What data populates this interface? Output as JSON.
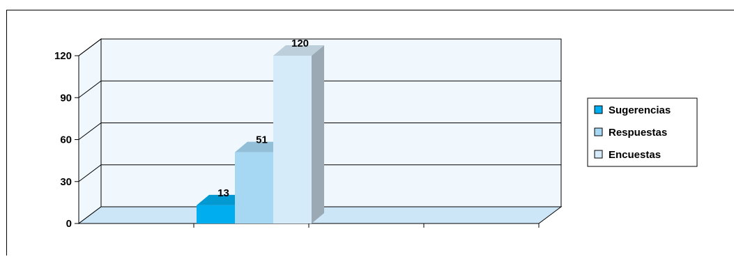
{
  "chart_data": {
    "type": "bar",
    "categories": [
      ""
    ],
    "series": [
      {
        "name": "Sugerencias",
        "values": [
          13
        ],
        "color": "#00AEEF"
      },
      {
        "name": "Respuestas",
        "values": [
          51
        ],
        "color": "#A6D8F4"
      },
      {
        "name": "Encuestas",
        "values": [
          120
        ],
        "color": "#D6EBF9"
      }
    ],
    "data_labels": [
      "13",
      "51",
      "120"
    ],
    "title": "",
    "xlabel": "",
    "ylabel": "",
    "ylim": [
      0,
      120
    ],
    "yticks": [
      0,
      30,
      60,
      90,
      120
    ],
    "ytick_labels": [
      "0",
      "30",
      "60",
      "90",
      "120"
    ],
    "grid": true,
    "legend_position": "right",
    "three_d": true,
    "wall_color": "#F0F7FD",
    "floor_color": "#CCE6F7"
  }
}
